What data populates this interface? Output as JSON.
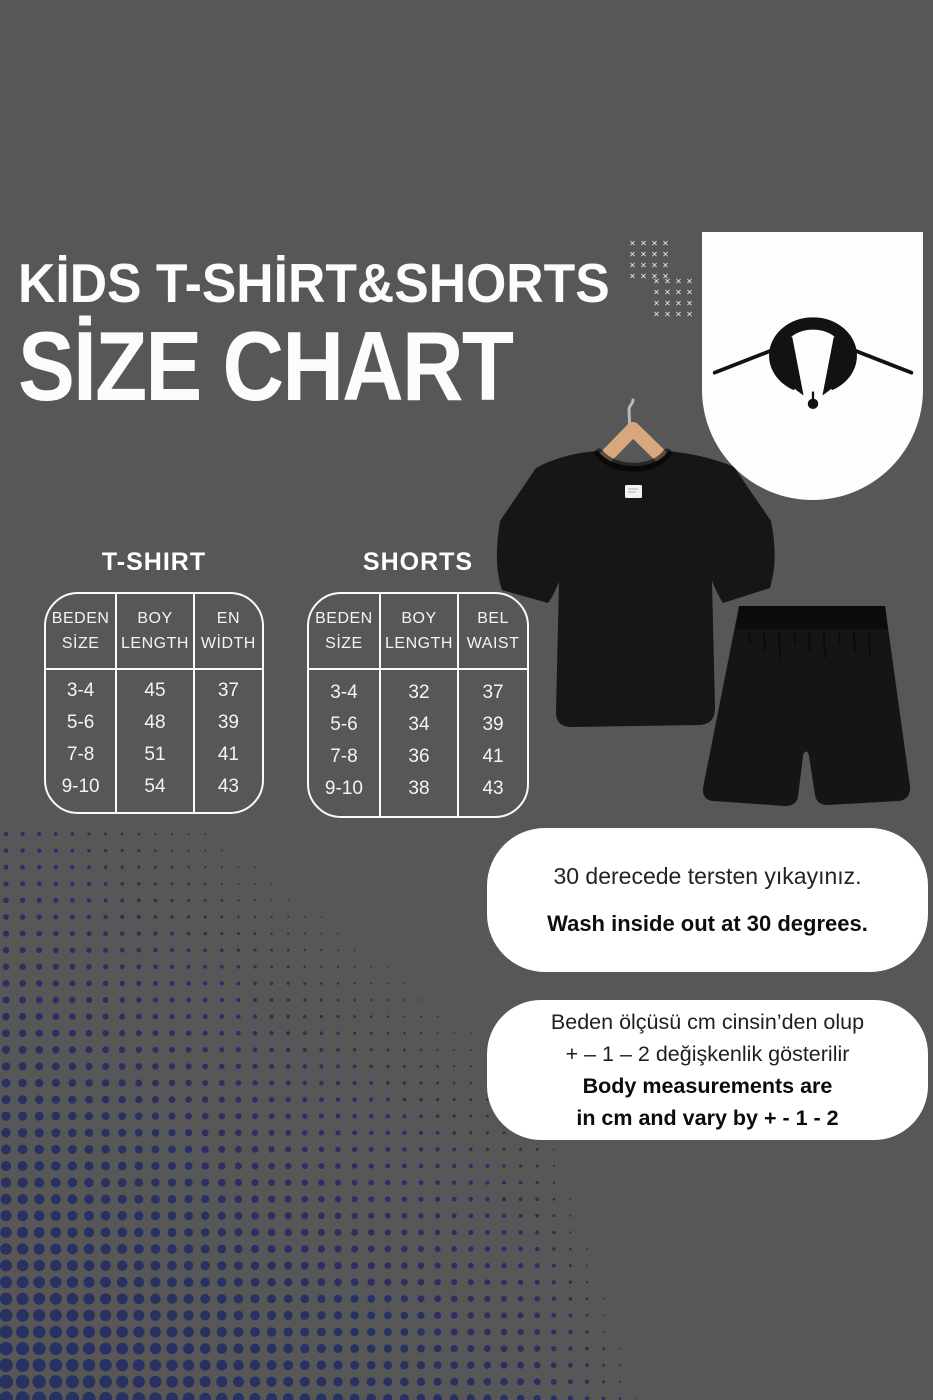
{
  "page": {
    "background": "#575757"
  },
  "header": {
    "title_line1": "KİDS T-SHİRT&SHORTS",
    "title_line2": "SİZE CHART"
  },
  "chart_data": [
    {
      "type": "table",
      "title": "T-SHIRT",
      "columns": [
        "BEDEN SİZE",
        "BOY LENGTH",
        "EN WİDTH"
      ],
      "header_lines": [
        [
          "BEDEN",
          "SİZE"
        ],
        [
          "BOY",
          "LENGTH"
        ],
        [
          "EN",
          "WİDTH"
        ]
      ],
      "rows": [
        [
          "3-4",
          "45",
          "37"
        ],
        [
          "5-6",
          "48",
          "39"
        ],
        [
          "7-8",
          "51",
          "41"
        ],
        [
          "9-10",
          "54",
          "43"
        ]
      ]
    },
    {
      "type": "table",
      "title": "SHORTS",
      "columns": [
        "BEDEN SİZE",
        "BOY LENGTH",
        "BEL WAIST"
      ],
      "header_lines": [
        [
          "BEDEN",
          "SİZE"
        ],
        [
          "BOY",
          "LENGTH"
        ],
        [
          "BEL",
          "WAIST"
        ]
      ],
      "rows": [
        [
          "3-4",
          "32",
          "37"
        ],
        [
          "5-6",
          "34",
          "39"
        ],
        [
          "7-8",
          "36",
          "41"
        ],
        [
          "9-10",
          "38",
          "43"
        ]
      ]
    }
  ],
  "notes": {
    "care": {
      "tr": "30 derecede tersten yıkayınız.",
      "en": "Wash inside out at 30 degrees."
    },
    "measurement": {
      "tr_line1": "Beden ölçüsü cm cinsin’den olup",
      "tr_line2": "+ – 1 – 2 değişkenlik gösterilir",
      "en_line1": "Body measurements are",
      "en_line2": "in cm and vary by + - 1 - 2"
    }
  },
  "photo": {
    "tshirt_color": "#161616",
    "shorts_color": "#151515",
    "waistband_color": "#0c0c0c",
    "hanger_color": "#d7a87e",
    "hook_color": "#b8b8b8",
    "label_color": "#f2f2f2"
  },
  "decor": {
    "halftone_color": "#272e63",
    "x_mark": "✕",
    "x_color": "#ececec"
  }
}
